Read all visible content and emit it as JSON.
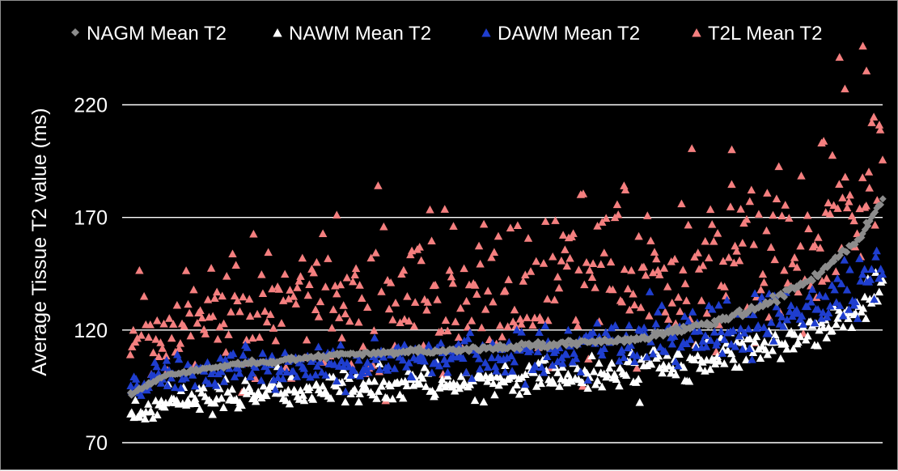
{
  "chart_data": {
    "type": "scatter",
    "title": "",
    "xlabel": "",
    "ylabel": "Average Tissue T2 value (ms)",
    "ylim": [
      70,
      250
    ],
    "y_ticks": [
      70,
      120,
      170,
      220
    ],
    "grid": true,
    "legend_position": "top",
    "background": "#000000",
    "n_subjects": 420,
    "series": [
      {
        "name": "NAGM Mean T2",
        "marker": "diamond",
        "color": "#8c8c8c",
        "anchors_x": [
          0,
          20,
          60,
          120,
          200,
          280,
          320,
          350,
          380,
          405,
          419
        ],
        "anchors_y": [
          91,
          100,
          105,
          109,
          112,
          116,
          122,
          130,
          143,
          160,
          178
        ],
        "spread": 0.5
      },
      {
        "name": "NAWM Mean T2",
        "marker": "triangle",
        "color": "#ffffff",
        "anchors_x": [
          0,
          20,
          60,
          120,
          200,
          280,
          320,
          350,
          380,
          405,
          419
        ],
        "anchors_y": [
          80,
          88,
          91,
          94,
          97,
          102,
          107,
          112,
          118,
          128,
          138
        ],
        "spread": 3
      },
      {
        "name": "DAWM Mean T2",
        "marker": "triangle",
        "color": "#1f3ecf",
        "anchors_x": [
          0,
          20,
          60,
          120,
          200,
          280,
          320,
          350,
          380,
          405,
          419
        ],
        "anchors_y": [
          93,
          101,
          103,
          105,
          108,
          114,
          119,
          123,
          130,
          140,
          150
        ],
        "spread": 4
      },
      {
        "name": "T2L Mean T2",
        "marker": "triangle",
        "color": "#f47f7f",
        "anchors_x": [
          0,
          20,
          60,
          120,
          200,
          280,
          320,
          350,
          380,
          405,
          419
        ],
        "anchors_y": [
          113,
          122,
          127,
          132,
          136,
          143,
          150,
          155,
          162,
          175,
          200
        ],
        "spread": 13,
        "outliers": [
          {
            "x": 115,
            "y": 171
          },
          {
            "x": 180,
            "y": 166
          },
          {
            "x": 275,
            "y": 184
          },
          {
            "x": 335,
            "y": 200
          },
          {
            "x": 385,
            "y": 203
          },
          {
            "x": 395,
            "y": 241
          },
          {
            "x": 408,
            "y": 246
          },
          {
            "x": 410,
            "y": 235
          },
          {
            "x": 398,
            "y": 227
          },
          {
            "x": 252,
            "y": 95
          }
        ]
      }
    ]
  }
}
